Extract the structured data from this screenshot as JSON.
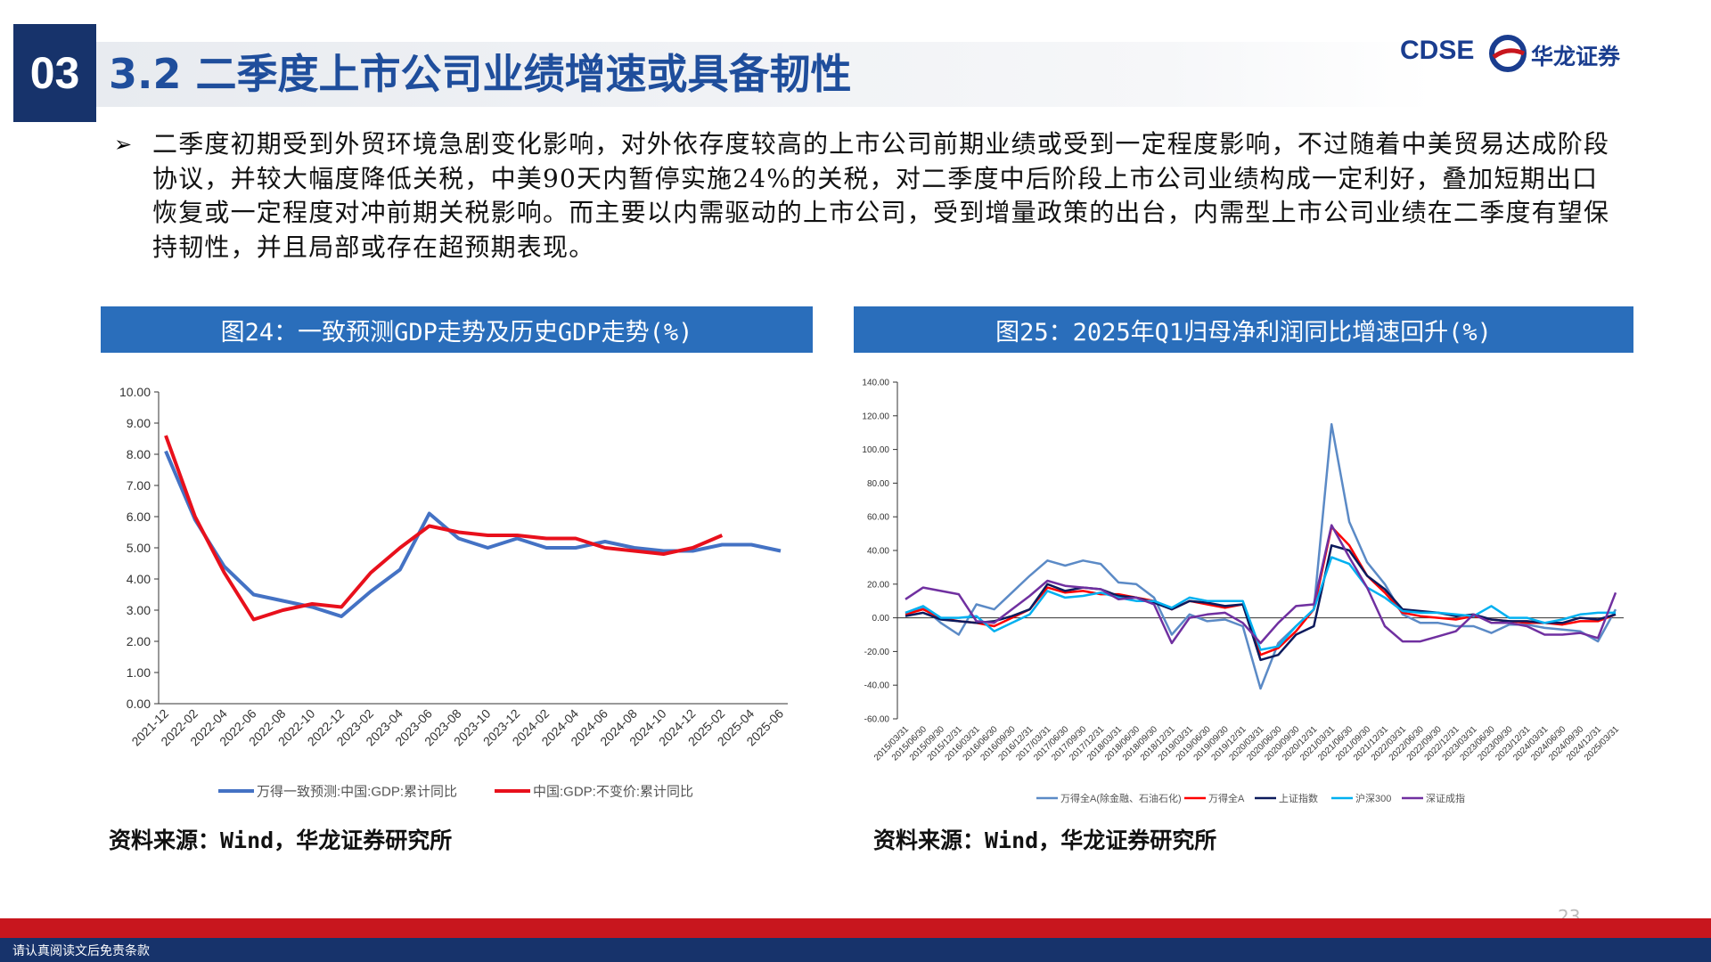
{
  "header": {
    "section": "03",
    "title": "3.2 二季度上市公司业绩增速或具备韧性",
    "logo": "CDSE",
    "company": "华龙证券"
  },
  "paragraph": "二季度初期受到外贸环境急剧变化影响，对外依存度较高的上市公司前期业绩或受到一定程度影响，不过随着中美贸易达成阶段协议，并较大幅度降低关税，中美90天内暂停实施24%的关税，对二季度中后阶段上市公司业绩构成一定利好，叠加短期出口恢复或一定程度对冲前期关税影响。而主要以内需驱动的上市公司，受到增量政策的出台，内需型上市公司业绩在二季度有望保持韧性，并且局部或存在超预期表现。",
  "chart_data": [
    {
      "type": "line",
      "title": "图24：一致预测GDP走势及历史GDP走势(%)",
      "categories": [
        "2021-12",
        "2022-02",
        "2022-04",
        "2022-06",
        "2022-08",
        "2022-10",
        "2022-12",
        "2023-02",
        "2023-04",
        "2023-06",
        "2023-08",
        "2023-10",
        "2023-12",
        "2024-02",
        "2024-04",
        "2024-06",
        "2024-08",
        "2024-10",
        "2024-12",
        "2025-02",
        "2025-04",
        "2025-06"
      ],
      "series": [
        {
          "name": "万得一致预测:中国:GDP:累计同比",
          "color": "#4472c4",
          "values": [
            8.1,
            5.9,
            4.4,
            3.5,
            3.3,
            3.1,
            2.8,
            3.6,
            4.3,
            6.1,
            5.3,
            5.0,
            5.3,
            5.0,
            5.0,
            5.2,
            5.0,
            4.9,
            4.9,
            5.1,
            5.1,
            4.9
          ]
        },
        {
          "name": "中国:GDP:不变价:累计同比",
          "color": "#e8101c",
          "values": [
            8.6,
            6.0,
            4.2,
            2.7,
            3.0,
            3.2,
            3.1,
            4.2,
            5.0,
            5.7,
            5.5,
            5.4,
            5.4,
            5.3,
            5.3,
            5.0,
            4.9,
            4.8,
            5.0,
            5.4,
            null,
            null
          ]
        }
      ],
      "ylim": [
        0,
        10
      ],
      "yticks": [
        {
          "value": 0,
          "label": "0.00"
        },
        {
          "value": 1,
          "label": "1.00"
        },
        {
          "value": 2,
          "label": "2.00"
        },
        {
          "value": 3,
          "label": "3.00"
        },
        {
          "value": 4,
          "label": "4.00"
        },
        {
          "value": 5,
          "label": "5.00"
        },
        {
          "value": 6,
          "label": "6.00"
        },
        {
          "value": 7,
          "label": "7.00"
        },
        {
          "value": 8,
          "label": "8.00"
        },
        {
          "value": 9,
          "label": "9.00"
        },
        {
          "value": 10,
          "label": "10.00"
        }
      ]
    },
    {
      "type": "line",
      "title": "图25：2025年Q1归母净利润同比增速回升(%)",
      "categories": [
        "2015/03/31",
        "2015/06/30",
        "2015/09/30",
        "2015/12/31",
        "2016/03/31",
        "2016/06/30",
        "2016/09/30",
        "2016/12/31",
        "2017/03/31",
        "2017/06/30",
        "2017/09/30",
        "2017/12/31",
        "2018/03/31",
        "2018/06/30",
        "2018/09/30",
        "2018/12/31",
        "2019/03/31",
        "2019/06/30",
        "2019/09/30",
        "2019/12/31",
        "2020/03/31",
        "2020/06/30",
        "2020/09/30",
        "2020/12/31",
        "2021/03/31",
        "2021/06/30",
        "2021/09/30",
        "2021/12/31",
        "2022/03/31",
        "2022/06/30",
        "2022/09/30",
        "2022/12/31",
        "2023/03/31",
        "2023/06/30",
        "2023/09/30",
        "2023/12/31",
        "2024/03/31",
        "2024/06/30",
        "2024/09/30",
        "2024/12/31",
        "2025/03/31"
      ],
      "series": [
        {
          "name": "万得全A(除金融、石油石化)",
          "color": "#5b8ac6",
          "values": [
            3,
            6,
            -3,
            -10,
            8,
            5,
            15,
            25,
            34,
            31,
            34,
            32,
            21,
            20,
            12,
            -10,
            2,
            -2,
            -1,
            -5,
            -42,
            -15,
            -5,
            5,
            115,
            57,
            33,
            20,
            2,
            -3,
            -3,
            -5,
            -5,
            -9,
            -4,
            -4,
            -6,
            -7,
            -8,
            -14,
            5
          ]
        },
        {
          "name": "万得全A",
          "color": "#ff0000",
          "values": [
            2,
            5,
            0,
            -2,
            -3,
            -5,
            0,
            5,
            18,
            15,
            16,
            14,
            14,
            12,
            10,
            5,
            10,
            8,
            6,
            8,
            -22,
            -18,
            -8,
            5,
            54,
            43,
            25,
            15,
            3,
            1,
            0,
            -1,
            1,
            -1,
            -2,
            -3,
            -3,
            -4,
            -2,
            -2,
            2
          ]
        },
        {
          "name": "上证指数",
          "color": "#0c1a5c",
          "values": [
            1,
            3,
            -1,
            -2,
            -3,
            -2,
            1,
            5,
            20,
            16,
            18,
            17,
            13,
            12,
            9,
            5,
            10,
            9,
            7,
            8,
            -25,
            -22,
            -10,
            -5,
            43,
            40,
            25,
            17,
            5,
            4,
            3,
            1,
            2,
            -1,
            -2,
            -2,
            -3,
            -3,
            0,
            -1,
            2
          ]
        },
        {
          "name": "沪深300",
          "color": "#00b0f0",
          "values": [
            3,
            7,
            0,
            0,
            1,
            -8,
            -3,
            2,
            16,
            12,
            13,
            15,
            12,
            10,
            10,
            6,
            12,
            10,
            10,
            10,
            -19,
            -17,
            -5,
            5,
            36,
            32,
            18,
            12,
            4,
            3,
            3,
            2,
            1,
            7,
            0,
            0,
            -3,
            -1,
            2,
            3,
            3
          ]
        },
        {
          "name": "深证成指",
          "color": "#7030a0",
          "values": [
            11,
            18,
            16,
            14,
            -2,
            -3,
            5,
            13,
            22,
            19,
            18,
            17,
            11,
            12,
            8,
            -15,
            0,
            2,
            3,
            -3,
            -15,
            -3,
            7,
            8,
            55,
            36,
            18,
            -5,
            -14,
            -14,
            -11,
            -8,
            2,
            -3,
            -3,
            -5,
            -10,
            -10,
            -9,
            -12,
            15
          ]
        }
      ],
      "ylim": [
        -60,
        140
      ],
      "yticks": [
        {
          "value": -60,
          "label": "-60.00"
        },
        {
          "value": -40,
          "label": "-40.00"
        },
        {
          "value": -20,
          "label": "-20.00"
        },
        {
          "value": 0,
          "label": "0.00"
        },
        {
          "value": 20,
          "label": "20.00"
        },
        {
          "value": 40,
          "label": "40.00"
        },
        {
          "value": 60,
          "label": "60.00"
        },
        {
          "value": 80,
          "label": "80.00"
        },
        {
          "value": 100,
          "label": "100.00"
        },
        {
          "value": 120,
          "label": "120.00"
        },
        {
          "value": 140,
          "label": "140.00"
        }
      ]
    }
  ],
  "sources": [
    "资料来源：Wind，华龙证券研究所",
    "资料来源：Wind，华龙证券研究所"
  ],
  "page_number": "23",
  "footer": "请认真阅读文后免责条款"
}
